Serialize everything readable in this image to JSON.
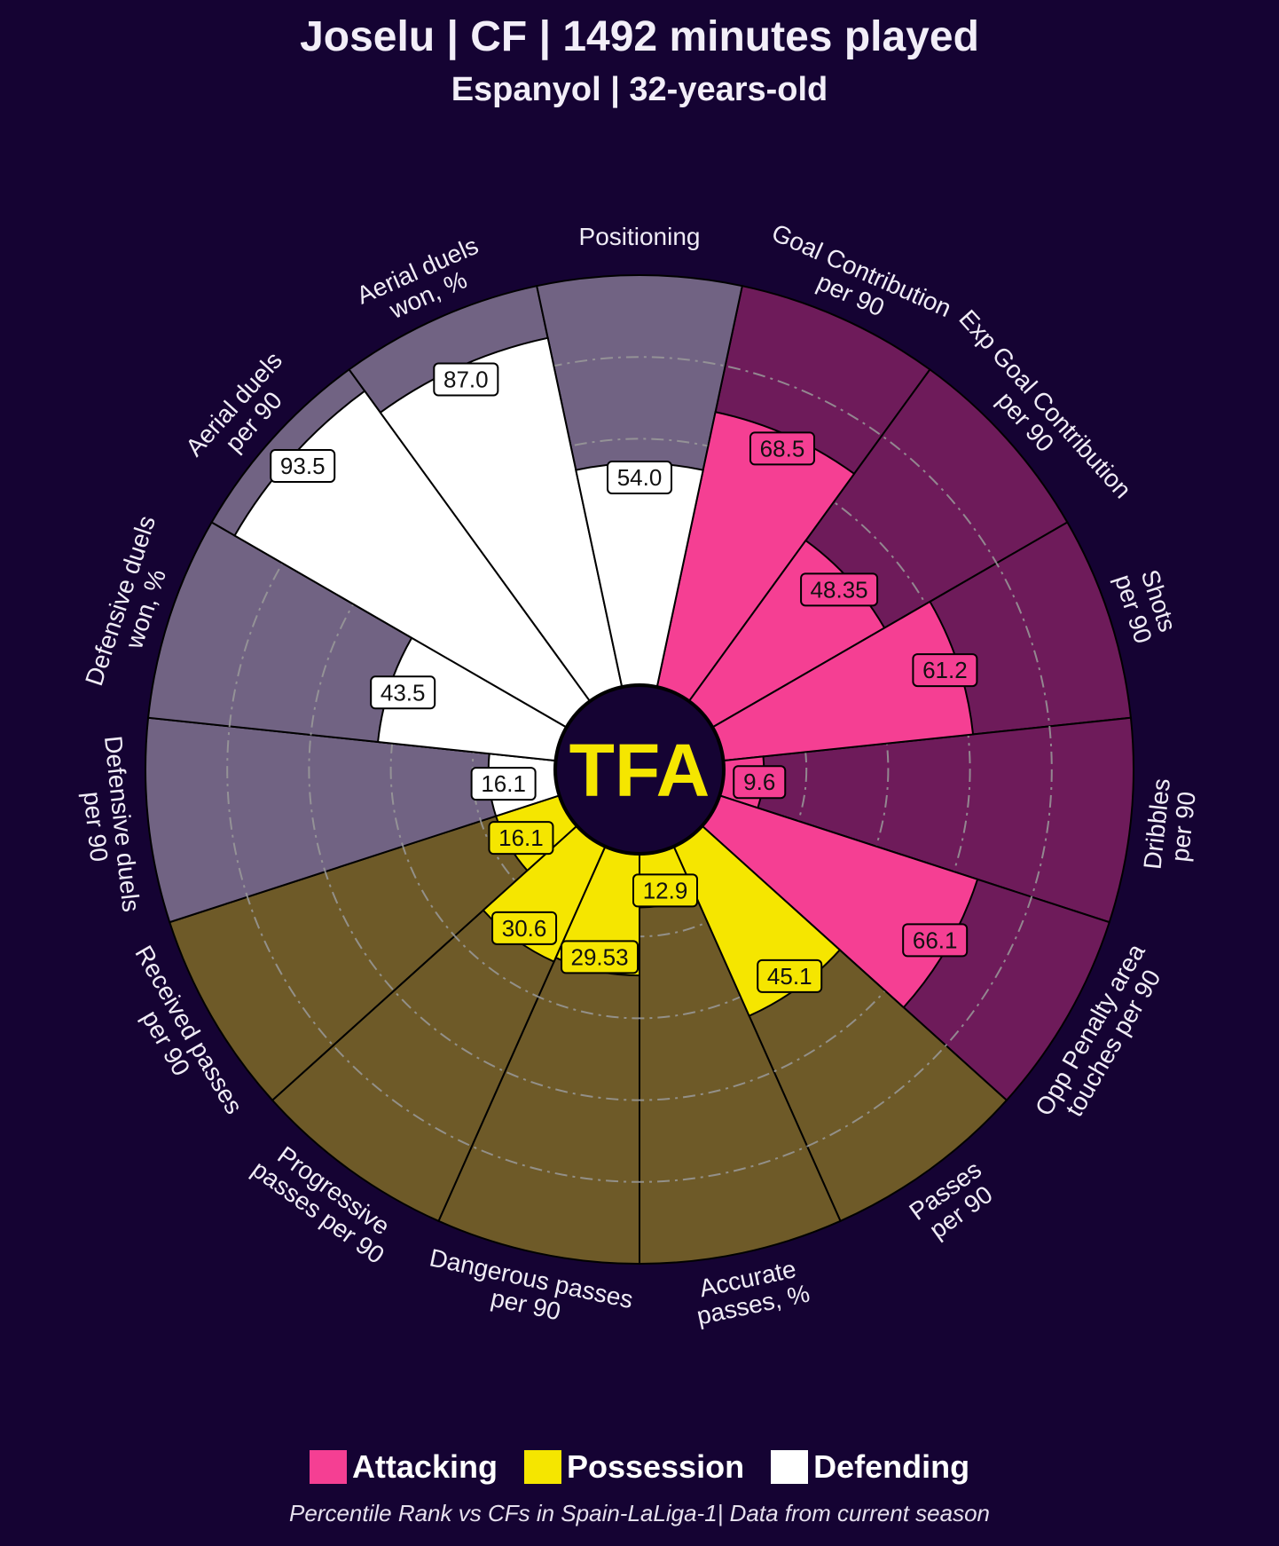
{
  "header": {
    "title": "Joselu | CF | 1492 minutes played",
    "subtitle": "Espanyol | 32-years-old"
  },
  "logo": {
    "text": "TFA",
    "color": "#f5e600"
  },
  "colors": {
    "background": "#150333",
    "attacking": "#f53f93",
    "attacking_bg": "#6e1b5a",
    "possession": "#f5e600",
    "possession_bg": "#6e5a28",
    "defending": "#ffffff",
    "defending_bg": "#716383",
    "grid": "#9a9a9a"
  },
  "legend": [
    {
      "label": "Attacking",
      "color": "#f53f93"
    },
    {
      "label": "Possession",
      "color": "#f5e600"
    },
    {
      "label": "Defending",
      "color": "#ffffff"
    }
  ],
  "footnote": "Percentile Rank vs CFs in Spain-LaLiga-1| Data from current season",
  "chart_data": {
    "type": "polar-bar",
    "rlim": [
      0,
      100
    ],
    "gridlines": [
      20,
      40,
      60,
      80
    ],
    "grid": true,
    "legend_position": "bottom",
    "series_groups": [
      "Attacking",
      "Possession",
      "Defending"
    ],
    "params": [
      {
        "label": "Goal Contribution\nper 90",
        "value": 68.5,
        "display": "68.5",
        "group": "Attacking"
      },
      {
        "label": "Exp Goal Contribution\nper 90",
        "value": 48.35,
        "display": "48.35",
        "group": "Attacking"
      },
      {
        "label": "Shots\nper 90",
        "value": 61.2,
        "display": "61.2",
        "group": "Attacking"
      },
      {
        "label": "Dribbles\nper 90",
        "value": 9.6,
        "display": "9.6",
        "group": "Attacking"
      },
      {
        "label": "Opp Penalty area\ntouches per 90",
        "value": 66.1,
        "display": "66.1",
        "group": "Attacking"
      },
      {
        "label": "Passes\nper 90",
        "value": 45.1,
        "display": "45.1",
        "group": "Possession"
      },
      {
        "label": "Accurate\npasses, %",
        "value": 12.9,
        "display": "12.9",
        "group": "Possession"
      },
      {
        "label": "Dangerous passes\nper 90",
        "value": 29.53,
        "display": "29.53",
        "group": "Possession"
      },
      {
        "label": "Progressive\npasses per 90",
        "value": 30.6,
        "display": "30.6",
        "group": "Possession"
      },
      {
        "label": "Received passes\nper 90",
        "value": 16.1,
        "display": "16.1",
        "group": "Possession"
      },
      {
        "label": "Defensive duels\nper 90",
        "value": 16.1,
        "display": "16.1",
        "group": "Defending"
      },
      {
        "label": "Defensive duels\nwon, %",
        "value": 43.5,
        "display": "43.5",
        "group": "Defending"
      },
      {
        "label": "Aerial duels\nper 90",
        "value": 93.5,
        "display": "93.5",
        "group": "Defending"
      },
      {
        "label": "Aerial duels\nwon, %",
        "value": 87.0,
        "display": "87.0",
        "group": "Defending"
      },
      {
        "label": "Positioning",
        "value": 54.0,
        "display": "54.0",
        "group": "Defending"
      }
    ]
  }
}
